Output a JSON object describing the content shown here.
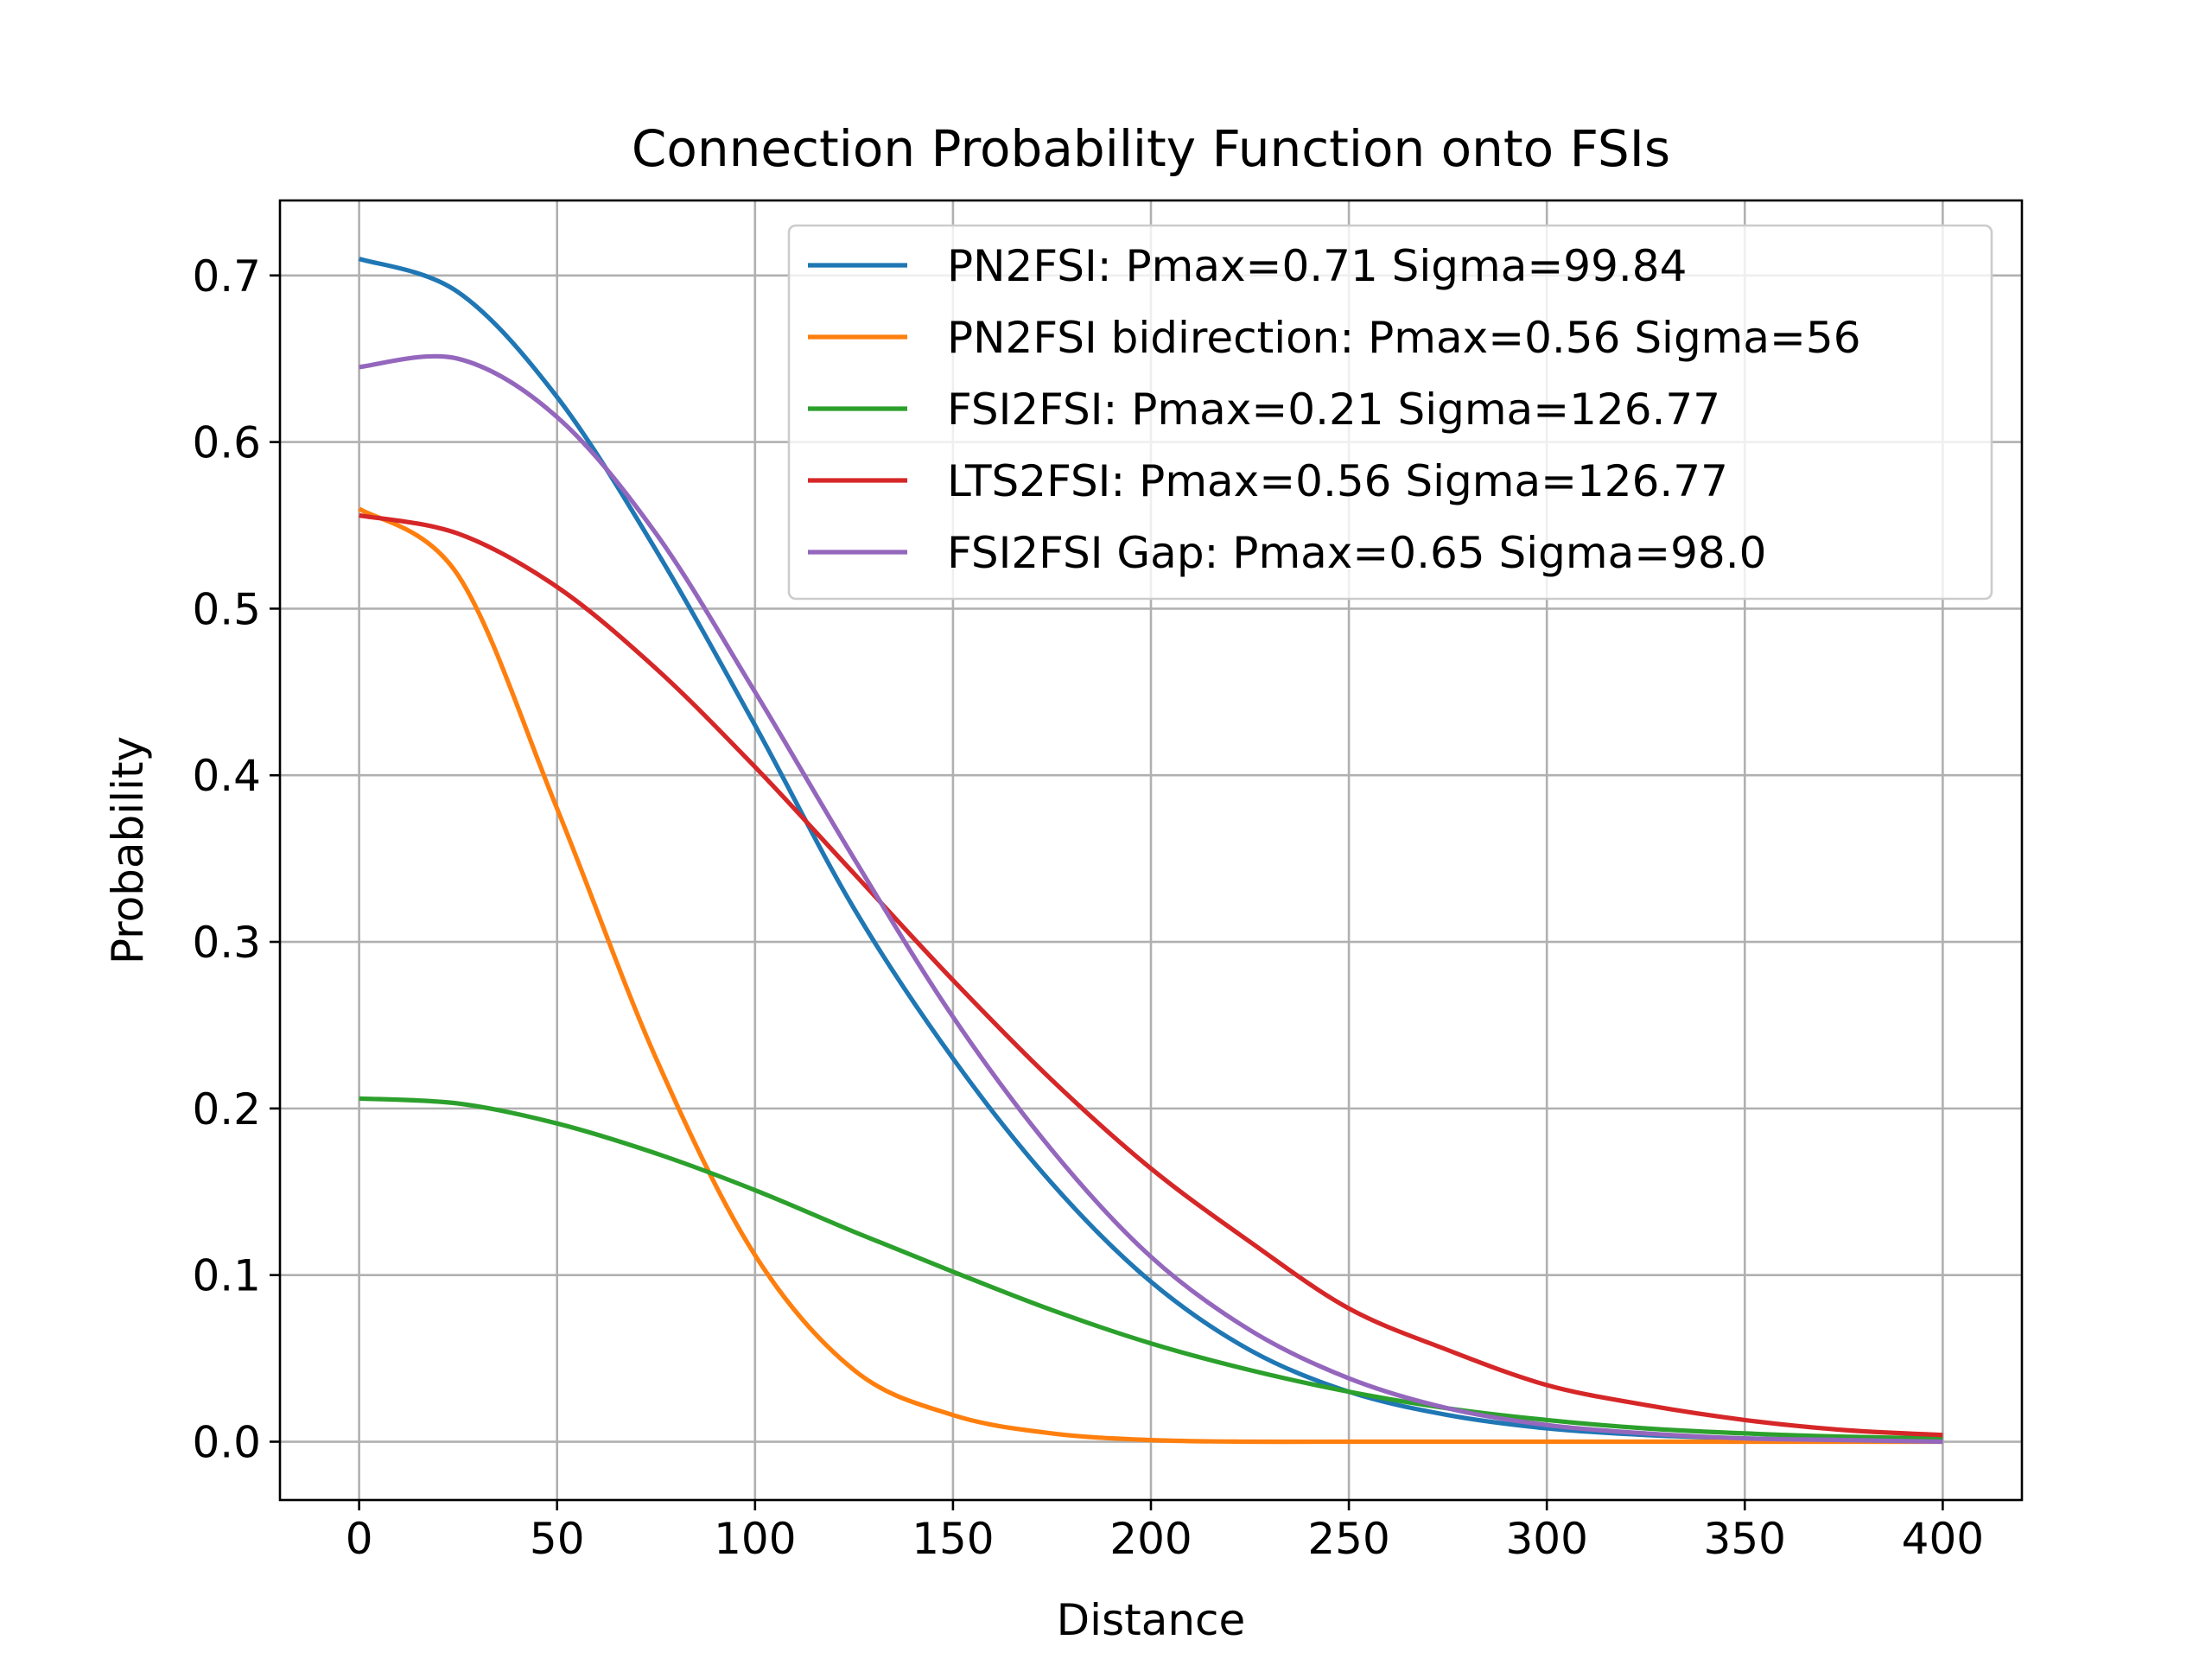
{
  "chart_data": {
    "type": "line",
    "title": "Connection Probability Function onto FSIs",
    "xlabel": "Distance",
    "ylabel": "Probability",
    "xlim": [
      -20,
      420
    ],
    "ylim": [
      -0.035,
      0.745
    ],
    "xticks": [
      0,
      50,
      100,
      150,
      200,
      250,
      300,
      350,
      400
    ],
    "yticks": [
      0.0,
      0.1,
      0.2,
      0.3,
      0.4,
      0.5,
      0.6,
      0.7
    ],
    "xtick_labels": [
      "0",
      "50",
      "100",
      "150",
      "200",
      "250",
      "300",
      "350",
      "400"
    ],
    "ytick_labels": [
      "0.0",
      "0.1",
      "0.2",
      "0.3",
      "0.4",
      "0.5",
      "0.6",
      "0.7"
    ],
    "grid": true,
    "legend_position": "top-right",
    "x": [
      0,
      25,
      50,
      75,
      100,
      125,
      150,
      175,
      200,
      225,
      250,
      275,
      300,
      325,
      350,
      375,
      400
    ],
    "series": [
      {
        "name": "PN2FSI: Pmax=0.71 Sigma=99.84",
        "color": "#1f77b4",
        "values": [
          0.71,
          0.69,
          0.627,
          0.535,
          0.43,
          0.32,
          0.23,
          0.155,
          0.096,
          0.055,
          0.03,
          0.016,
          0.008,
          0.004,
          0.002,
          0.001,
          0.001
        ]
      },
      {
        "name": "PN2FSI bidirection: Pmax=0.56 Sigma=56",
        "color": "#ff7f0e",
        "values": [
          0.56,
          0.52,
          0.38,
          0.23,
          0.112,
          0.043,
          0.016,
          0.005,
          0.001,
          0.0,
          0.0,
          0.0,
          0.0,
          0.0,
          0.0,
          0.0,
          0.0
        ]
      },
      {
        "name": "FSI2FSI: Pmax=0.21 Sigma=126.77",
        "color": "#2ca02c",
        "values": [
          0.206,
          0.203,
          0.191,
          0.173,
          0.151,
          0.126,
          0.102,
          0.079,
          0.059,
          0.043,
          0.03,
          0.02,
          0.013,
          0.008,
          0.005,
          0.003,
          0.002
        ]
      },
      {
        "name": "LTS2FSI: Pmax=0.56 Sigma=126.77",
        "color": "#d62728",
        "values": [
          0.556,
          0.545,
          0.513,
          0.464,
          0.405,
          0.341,
          0.277,
          0.217,
          0.164,
          0.12,
          0.08,
          0.055,
          0.034,
          0.022,
          0.013,
          0.007,
          0.004
        ]
      },
      {
        "name": "FSI2FSI Gap: Pmax=0.65 Sigma=98.0",
        "color": "#9467bd",
        "values": [
          0.645,
          0.65,
          0.615,
          0.545,
          0.45,
          0.35,
          0.255,
          0.175,
          0.111,
          0.067,
          0.038,
          0.02,
          0.01,
          0.005,
          0.002,
          0.001,
          0.0
        ]
      }
    ]
  }
}
